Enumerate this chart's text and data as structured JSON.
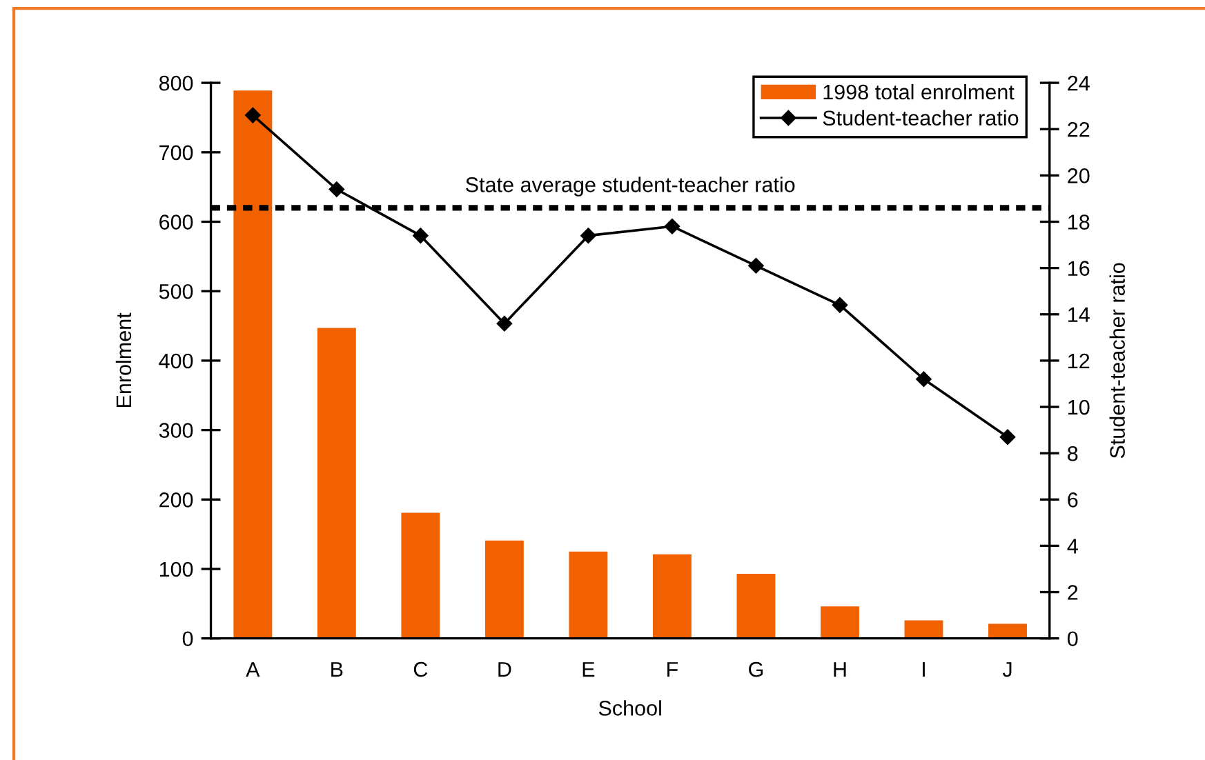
{
  "chart_data": {
    "type": "bar",
    "xlabel": "School",
    "ylabel": "Enrolment",
    "y2label": "Student-teacher ratio",
    "categories": [
      "A",
      "B",
      "C",
      "D",
      "E",
      "F",
      "G",
      "H",
      "I",
      "J"
    ],
    "series": [
      {
        "name": "1998 total enrolment",
        "color": "#f26100",
        "values": [
          789,
          447,
          181,
          141,
          125,
          121,
          93,
          46,
          26,
          21
        ]
      },
      {
        "name": "Student-teacher ratio",
        "type": "line",
        "axis": "y2",
        "color": "#000000",
        "values": [
          22.6,
          19.4,
          17.4,
          13.6,
          17.4,
          17.8,
          16.1,
          14.4,
          11.2,
          8.7
        ]
      }
    ],
    "ylim": [
      0,
      800
    ],
    "yticks": [
      0,
      100,
      200,
      300,
      400,
      500,
      600,
      700,
      800
    ],
    "y2lim": [
      0,
      24
    ],
    "y2ticks": [
      0,
      2,
      4,
      6,
      8,
      10,
      12,
      14,
      16,
      18,
      20,
      22,
      24
    ],
    "ref_lines": [
      {
        "axis": "y2",
        "value": 18.6,
        "label": "State average student-teacher ratio",
        "color": "#000000",
        "line_style": "dotted"
      }
    ],
    "legend": "top right",
    "marker": "diamond",
    "line_style": "solid"
  }
}
